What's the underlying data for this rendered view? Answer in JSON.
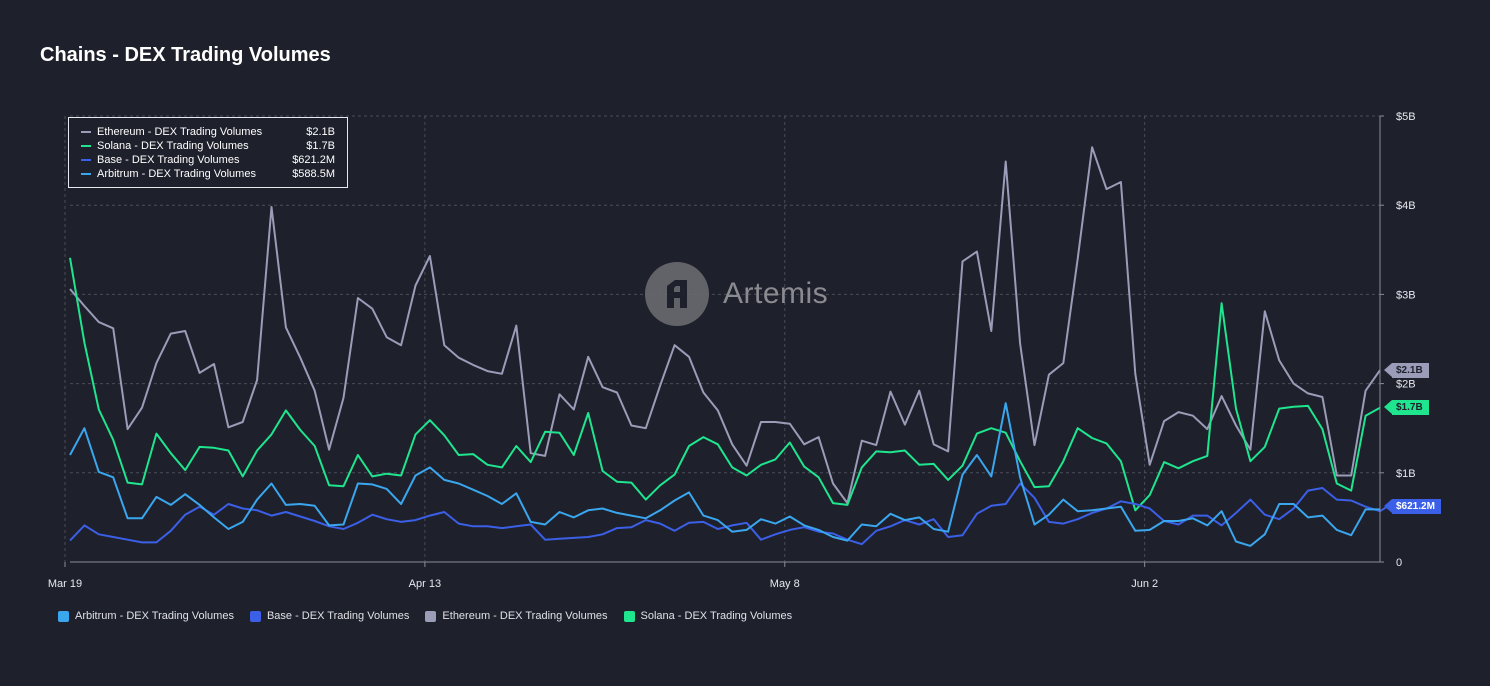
{
  "title": "Chains - DEX Trading Volumes",
  "watermark": "Artemis",
  "chart_data": {
    "type": "line",
    "x_ticks": [
      "Mar 19",
      "Apr 13",
      "May 8",
      "Jun 2"
    ],
    "y_ticks": [
      "0",
      "$1B",
      "$2B",
      "$3B",
      "$4B",
      "$5B"
    ],
    "ylim": [
      0,
      5
    ],
    "y_unit": "B",
    "grid": true,
    "series": [
      {
        "name": "Ethereum - DEX Trading Volumes",
        "color": "#9a9cb8",
        "last_label": "$2.1B",
        "values": [
          3.06,
          2.87,
          2.69,
          2.62,
          1.49,
          1.73,
          2.23,
          2.56,
          2.59,
          2.12,
          2.22,
          1.51,
          1.57,
          2.04,
          3.98,
          2.63,
          2.29,
          1.92,
          1.26,
          1.84,
          2.96,
          2.84,
          2.52,
          2.43,
          3.1,
          3.43,
          2.43,
          2.29,
          2.21,
          2.14,
          2.11,
          2.65,
          1.22,
          1.19,
          1.88,
          1.71,
          2.3,
          1.96,
          1.9,
          1.53,
          1.5,
          1.98,
          2.43,
          2.3,
          1.9,
          1.7,
          1.32,
          1.08,
          1.57,
          1.57,
          1.55,
          1.32,
          1.4,
          0.88,
          0.66,
          1.36,
          1.31,
          1.91,
          1.54,
          1.92,
          1.32,
          1.24,
          3.37,
          3.48,
          2.59,
          4.49,
          2.45,
          1.31,
          2.1,
          2.23,
          3.4,
          4.65,
          4.18,
          4.26,
          2.11,
          1.09,
          1.58,
          1.68,
          1.64,
          1.49,
          1.86,
          1.53,
          1.26,
          2.81,
          2.26,
          2.0,
          1.89,
          1.85,
          0.97,
          0.97,
          1.92,
          2.15
        ]
      },
      {
        "name": "Solana - DEX Trading Volumes",
        "color": "#1ee58e",
        "last_label": "$1.7B",
        "values": [
          3.41,
          2.46,
          1.71,
          1.37,
          0.89,
          0.87,
          1.44,
          1.22,
          1.03,
          1.29,
          1.28,
          1.25,
          0.96,
          1.25,
          1.43,
          1.7,
          1.48,
          1.3,
          0.86,
          0.85,
          1.2,
          0.96,
          0.99,
          0.97,
          1.43,
          1.59,
          1.42,
          1.2,
          1.21,
          1.09,
          1.06,
          1.3,
          1.12,
          1.46,
          1.45,
          1.2,
          1.67,
          1.02,
          0.9,
          0.89,
          0.7,
          0.86,
          0.98,
          1.3,
          1.4,
          1.32,
          1.06,
          0.97,
          1.09,
          1.15,
          1.34,
          1.07,
          0.95,
          0.66,
          0.64,
          1.06,
          1.24,
          1.23,
          1.25,
          1.09,
          1.1,
          0.92,
          1.08,
          1.44,
          1.5,
          1.45,
          1.13,
          0.84,
          0.85,
          1.13,
          1.5,
          1.39,
          1.33,
          1.13,
          0.58,
          0.75,
          1.12,
          1.05,
          1.13,
          1.19,
          2.9,
          1.72,
          1.13,
          1.29,
          1.72,
          1.74,
          1.75,
          1.49,
          0.88,
          0.8,
          1.64,
          1.73
        ]
      },
      {
        "name": "Base - DEX Trading Volumes",
        "color": "#3b5fe6",
        "last_label": "$621.2M",
        "values": [
          0.24,
          0.41,
          0.31,
          0.28,
          0.25,
          0.22,
          0.22,
          0.35,
          0.53,
          0.62,
          0.53,
          0.65,
          0.6,
          0.58,
          0.52,
          0.56,
          0.51,
          0.46,
          0.4,
          0.37,
          0.44,
          0.53,
          0.48,
          0.45,
          0.47,
          0.52,
          0.56,
          0.43,
          0.4,
          0.4,
          0.38,
          0.4,
          0.42,
          0.25,
          0.26,
          0.27,
          0.28,
          0.31,
          0.38,
          0.39,
          0.47,
          0.43,
          0.35,
          0.44,
          0.45,
          0.37,
          0.41,
          0.44,
          0.25,
          0.31,
          0.36,
          0.39,
          0.34,
          0.32,
          0.25,
          0.2,
          0.35,
          0.4,
          0.47,
          0.42,
          0.48,
          0.28,
          0.3,
          0.54,
          0.63,
          0.65,
          0.88,
          0.72,
          0.45,
          0.43,
          0.48,
          0.55,
          0.6,
          0.68,
          0.65,
          0.6,
          0.46,
          0.42,
          0.52,
          0.52,
          0.41,
          0.55,
          0.7,
          0.53,
          0.48,
          0.6,
          0.8,
          0.83,
          0.7,
          0.69,
          0.62,
          0.57,
          0.67,
          0.62
        ]
      },
      {
        "name": "Arbitrum - DEX Trading Volumes",
        "color": "#3aa6ee",
        "last_label": "$588.5M",
        "values": [
          1.2,
          1.5,
          1.01,
          0.95,
          0.49,
          0.49,
          0.73,
          0.64,
          0.76,
          0.64,
          0.5,
          0.37,
          0.45,
          0.7,
          0.88,
          0.64,
          0.65,
          0.63,
          0.41,
          0.42,
          0.88,
          0.87,
          0.82,
          0.65,
          0.97,
          1.06,
          0.92,
          0.88,
          0.81,
          0.74,
          0.65,
          0.77,
          0.45,
          0.42,
          0.56,
          0.5,
          0.58,
          0.6,
          0.55,
          0.52,
          0.49,
          0.58,
          0.69,
          0.78,
          0.52,
          0.47,
          0.34,
          0.36,
          0.48,
          0.43,
          0.51,
          0.41,
          0.36,
          0.28,
          0.24,
          0.42,
          0.4,
          0.54,
          0.47,
          0.5,
          0.37,
          0.34,
          0.98,
          1.2,
          0.96,
          1.78,
          0.95,
          0.42,
          0.53,
          0.7,
          0.57,
          0.58,
          0.6,
          0.62,
          0.35,
          0.36,
          0.46,
          0.46,
          0.49,
          0.41,
          0.57,
          0.23,
          0.18,
          0.31,
          0.65,
          0.65,
          0.5,
          0.52,
          0.36,
          0.3,
          0.59,
          0.59
        ]
      }
    ],
    "legend_bottom": [
      {
        "name": "Arbitrum - DEX Trading Volumes",
        "color": "#3aa6ee"
      },
      {
        "name": "Base - DEX Trading Volumes",
        "color": "#3b5fe6"
      },
      {
        "name": "Ethereum - DEX Trading Volumes",
        "color": "#9a9cb8"
      },
      {
        "name": "Solana - DEX Trading Volumes",
        "color": "#1ee58e"
      }
    ],
    "tooltip": [
      {
        "name": "Ethereum - DEX Trading Volumes",
        "value": "$2.1B",
        "color": "#9a9cb8"
      },
      {
        "name": "Solana - DEX Trading Volumes",
        "value": "$1.7B",
        "color": "#1ee58e"
      },
      {
        "name": "Base - DEX Trading Volumes",
        "value": "$621.2M",
        "color": "#3b5fe6"
      },
      {
        "name": "Arbitrum - DEX Trading Volumes",
        "value": "$588.5M",
        "color": "#3aa6ee"
      }
    ]
  }
}
